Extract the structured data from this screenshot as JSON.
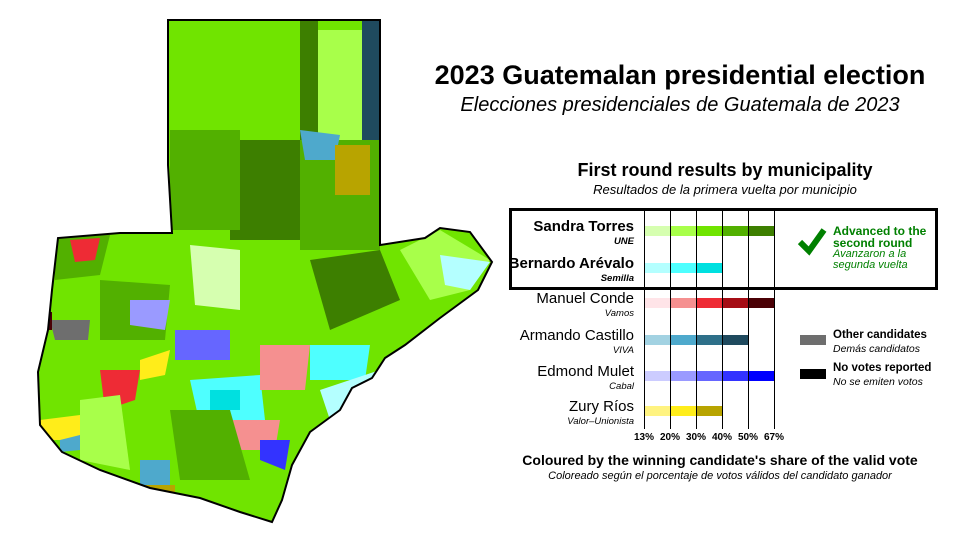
{
  "title": "2023 Guatemalan presidential election",
  "subtitle": "Elecciones presidenciales de Guatemala de 2023",
  "section": {
    "title": "First round results by municipality",
    "subtitle": "Resultados de la primera vuelta por municipio"
  },
  "advanced": {
    "label": "Advanced to the second round",
    "label_line1": "Advanced to the",
    "label_line2": "second round",
    "sub_line1": "Avanzaron a la",
    "sub_line2": "segunda vuelta",
    "color": "#008000",
    "icon": "checkmark-icon"
  },
  "scale_ticks": [
    "13%",
    "20%",
    "30%",
    "40%",
    "50%",
    "67%"
  ],
  "candidates": [
    {
      "name": "Sandra Torres",
      "party": "UNE",
      "advanced": true,
      "colors": [
        "#d6ffb0",
        "#a8ff4a",
        "#70e400",
        "#52b000",
        "#3d7f00"
      ]
    },
    {
      "name": "Bernardo Arévalo",
      "party": "Semilla",
      "advanced": true,
      "colors": [
        "#b4ffff",
        "#4effff",
        "#00e0e0"
      ]
    },
    {
      "name": "Manuel Conde",
      "party": "Vamos",
      "advanced": false,
      "colors": [
        "#ffe4e8",
        "#f59090",
        "#ee2b35",
        "#a50d15",
        "#4a0005"
      ]
    },
    {
      "name": "Armando Castillo",
      "party": "VIVA",
      "advanced": false,
      "colors": [
        "#a2d2e2",
        "#4ea9cc",
        "#2e7089",
        "#1f4a5e"
      ]
    },
    {
      "name": "Edmond Mulet",
      "party": "Cabal",
      "advanced": false,
      "colors": [
        "#ccccff",
        "#9a9aff",
        "#6666ff",
        "#3333ff",
        "#0000ff"
      ]
    },
    {
      "name": "Zury Ríos",
      "party": "Valor–Unionista",
      "advanced": false,
      "colors": [
        "#fff380",
        "#ffed1a",
        "#b8a400"
      ]
    }
  ],
  "other_legend": [
    {
      "label": "Other candidates",
      "sub": "Demás candidatos",
      "color": "#6e6e6e"
    },
    {
      "label": "No votes reported",
      "sub": "No se emiten votos",
      "color": "#000000"
    }
  ],
  "footer": {
    "title": "Coloured by the winning candidate's share of the valid vote",
    "subtitle": "Coloreado según el porcentaje de votos válidos del candidato ganador"
  }
}
